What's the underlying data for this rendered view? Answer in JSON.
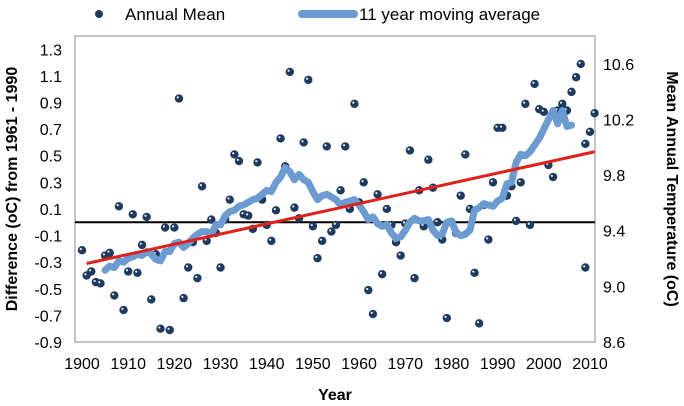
{
  "chart_data": {
    "type": "scatter",
    "xlabel": "Year",
    "ylabel": "Difference  (oC) from 1961 - 1990",
    "y2label": "Mean Annual Temperature (oC)",
    "xlim": [
      1900,
      2010
    ],
    "ylim": [
      -0.9,
      1.4
    ],
    "y2lim": [
      8.6,
      10.8
    ],
    "x_ticks": [
      "1900",
      "1910",
      "1920",
      "1930",
      "1940",
      "1950",
      "1960",
      "1970",
      "1980",
      "1990",
      "2000",
      "2010"
    ],
    "y_ticks": [
      "1.3",
      "1.1",
      "0.9",
      "0.7",
      "0.5",
      "0.3",
      "0.1",
      "-0.1",
      "-0.3",
      "-0.5",
      "-0.7",
      "-0.9"
    ],
    "y2_ticks": [
      "10.6",
      "10.2",
      "9.8",
      "9.4",
      "9.0",
      "8.6"
    ],
    "legend": {
      "position": "top",
      "entries": [
        "Annual Mean",
        "11 year moving average"
      ]
    },
    "colors": {
      "dots": "#1f3a5f",
      "dot_highlight": "#ffffff",
      "moving_average": "#6b9bd1",
      "trend": "#e0201b",
      "zero_line": "#000000"
    },
    "series": [
      {
        "name": "Annual Mean",
        "style": "markers",
        "x": [
          1900,
          1901,
          1902,
          1903,
          1904,
          1905,
          1906,
          1907,
          1908,
          1909,
          1910,
          1911,
          1912,
          1913,
          1914,
          1915,
          1916,
          1917,
          1918,
          1919,
          1920,
          1921,
          1922,
          1923,
          1924,
          1925,
          1926,
          1927,
          1928,
          1929,
          1930,
          1931,
          1932,
          1933,
          1934,
          1935,
          1936,
          1937,
          1938,
          1939,
          1940,
          1941,
          1942,
          1943,
          1944,
          1945,
          1946,
          1947,
          1948,
          1949,
          1950,
          1951,
          1952,
          1953,
          1954,
          1955,
          1956,
          1957,
          1958,
          1959,
          1960,
          1961,
          1962,
          1963,
          1964,
          1965,
          1966,
          1967,
          1968,
          1969,
          1970,
          1971,
          1972,
          1973,
          1974,
          1975,
          1976,
          1977,
          1978,
          1979,
          1980,
          1981,
          1982,
          1983,
          1984,
          1985,
          1986,
          1987,
          1988,
          1989,
          1990,
          1991,
          1992,
          1993,
          1994,
          1995,
          1996,
          1997,
          1998,
          1999,
          2000,
          2001,
          2002,
          2003,
          2004,
          2005,
          2006,
          2007,
          2008,
          2009,
          2010
        ],
        "y": [
          -0.21,
          -0.4,
          -0.37,
          -0.45,
          -0.46,
          -0.25,
          -0.23,
          -0.55,
          0.12,
          -0.66,
          -0.37,
          0.06,
          -0.38,
          -0.17,
          0.04,
          -0.58,
          -0.24,
          -0.8,
          -0.04,
          -0.81,
          -0.04,
          0.93,
          -0.57,
          -0.34,
          -0.15,
          -0.42,
          0.27,
          -0.14,
          0.02,
          -0.08,
          -0.34,
          0.02,
          0.17,
          0.51,
          0.46,
          0.06,
          0.05,
          -0.05,
          0.45,
          0.17,
          -0.02,
          -0.14,
          0.09,
          0.63,
          0.42,
          1.13,
          0.11,
          0.03,
          0.6,
          1.07,
          -0.03,
          -0.27,
          -0.14,
          0.57,
          -0.07,
          -0.02,
          0.24,
          0.57,
          0.1,
          0.89,
          0.15,
          0.3,
          -0.51,
          -0.69,
          0.21,
          -0.39,
          0.1,
          -0.02,
          -0.15,
          -0.25,
          -0.01,
          0.54,
          -0.42,
          0.24,
          -0.03,
          0.47,
          0.26,
          0.0,
          -0.13,
          -0.72,
          0.0,
          -0.08,
          0.2,
          0.51,
          0.1,
          -0.38,
          -0.76,
          0.13,
          -0.13,
          0.3,
          0.71,
          0.71,
          0.2,
          0.27,
          0.01,
          0.3,
          0.89,
          -0.02,
          1.04,
          0.85,
          0.83,
          0.43,
          0.34,
          0.84,
          0.89,
          0.84,
          0.98,
          1.09,
          1.19,
          0.59,
          0.68
        ],
        "extra_points": [
          [
            2009,
            -0.34
          ],
          [
            2011,
            0.82
          ]
        ]
      },
      {
        "name": "11 year moving average",
        "style": "line",
        "x": [
          1905,
          1906,
          1907,
          1908,
          1909,
          1910,
          1911,
          1912,
          1913,
          1914,
          1915,
          1916,
          1917,
          1918,
          1919,
          1920,
          1921,
          1922,
          1923,
          1924,
          1925,
          1926,
          1927,
          1928,
          1929,
          1930,
          1931,
          1932,
          1933,
          1934,
          1935,
          1936,
          1937,
          1938,
          1939,
          1940,
          1941,
          1942,
          1943,
          1944,
          1945,
          1946,
          1947,
          1948,
          1949,
          1950,
          1951,
          1952,
          1953,
          1954,
          1955,
          1956,
          1957,
          1958,
          1959,
          1960,
          1961,
          1962,
          1963,
          1964,
          1965,
          1966,
          1967,
          1968,
          1969,
          1970,
          1971,
          1972,
          1973,
          1974,
          1975,
          1976,
          1977,
          1978,
          1979,
          1980,
          1981,
          1982,
          1983,
          1984,
          1985,
          1986,
          1987,
          1988,
          1989,
          1990,
          1991,
          1992,
          1993,
          1994,
          1995,
          1996,
          1997,
          1998,
          1999,
          2000,
          2001,
          2002,
          2003,
          2004,
          2005,
          2006
        ],
        "y": [
          -0.36,
          -0.33,
          -0.34,
          -0.29,
          -0.3,
          -0.27,
          -0.26,
          -0.24,
          -0.25,
          -0.22,
          -0.24,
          -0.28,
          -0.29,
          -0.22,
          -0.22,
          -0.16,
          -0.15,
          -0.19,
          -0.16,
          -0.12,
          -0.09,
          -0.07,
          -0.07,
          -0.09,
          -0.02,
          -0.02,
          0.05,
          0.08,
          0.09,
          0.12,
          0.13,
          0.15,
          0.17,
          0.18,
          0.21,
          0.24,
          0.23,
          0.3,
          0.34,
          0.41,
          0.38,
          0.32,
          0.36,
          0.32,
          0.3,
          0.23,
          0.17,
          0.2,
          0.21,
          0.19,
          0.17,
          0.13,
          0.15,
          0.16,
          0.17,
          0.13,
          0.08,
          0.02,
          0.04,
          -0.01,
          -0.03,
          -0.02,
          -0.08,
          -0.12,
          -0.11,
          -0.06,
          0.0,
          0.03,
          0.01,
          0.01,
          0.02,
          -0.06,
          -0.1,
          -0.09,
          0.0,
          0.01,
          -0.08,
          -0.1,
          -0.09,
          -0.06,
          0.09,
          0.11,
          0.14,
          0.13,
          0.12,
          0.16,
          0.18,
          0.29,
          0.3,
          0.45,
          0.51,
          0.5,
          0.53,
          0.58,
          0.63,
          0.7,
          0.77,
          0.84,
          0.74,
          0.84,
          0.72,
          0.73
        ]
      },
      {
        "name": "Trend",
        "style": "line",
        "x": [
          1901,
          2011
        ],
        "y": [
          -0.31,
          0.53
        ]
      }
    ]
  }
}
